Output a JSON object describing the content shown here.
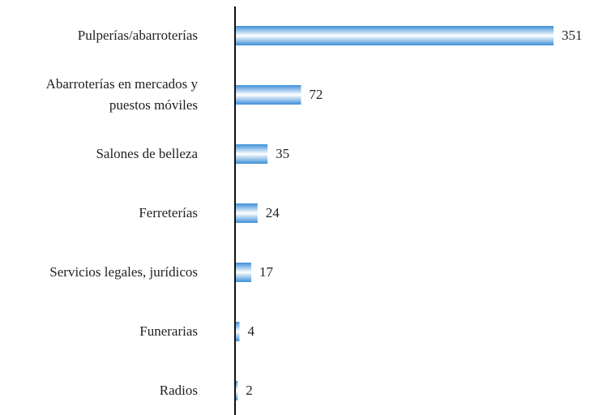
{
  "chart_data": {
    "type": "bar",
    "orientation": "horizontal",
    "categories": [
      "Pulperías/abarroterías",
      "Abarroterías en mercados y puestos móviles",
      "Salones de belleza",
      "Ferreterías",
      "Servicios legales, jurídicos",
      "Funerarias",
      "Radios"
    ],
    "values": [
      351,
      72,
      35,
      24,
      17,
      4,
      2
    ],
    "color": "#3d8fd8"
  }
}
